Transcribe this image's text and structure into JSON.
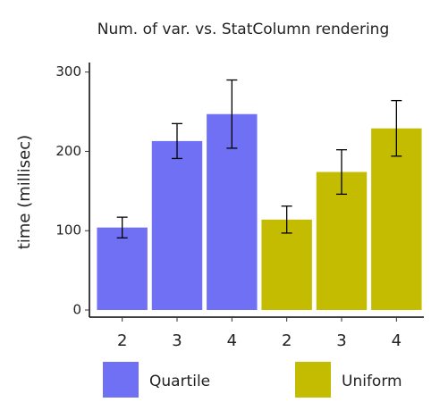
{
  "chart_data": {
    "type": "bar",
    "title": "Num. of var. vs. StatColumn rendering",
    "y_label": "time (millisec)",
    "categories": [
      "2",
      "3",
      "4"
    ],
    "series": [
      {
        "name": "Quartile",
        "color": "#7070f5",
        "values": [
          104,
          213,
          247
        ],
        "errors": [
          13,
          22,
          43
        ]
      },
      {
        "name": "Uniform",
        "color": "#c4bc00",
        "values": [
          114,
          174,
          229
        ],
        "errors": [
          17,
          28,
          35
        ]
      }
    ],
    "ylim": [
      -9,
      312
    ],
    "yticks": [
      0,
      100,
      200,
      300
    ],
    "legend": "bottom"
  }
}
